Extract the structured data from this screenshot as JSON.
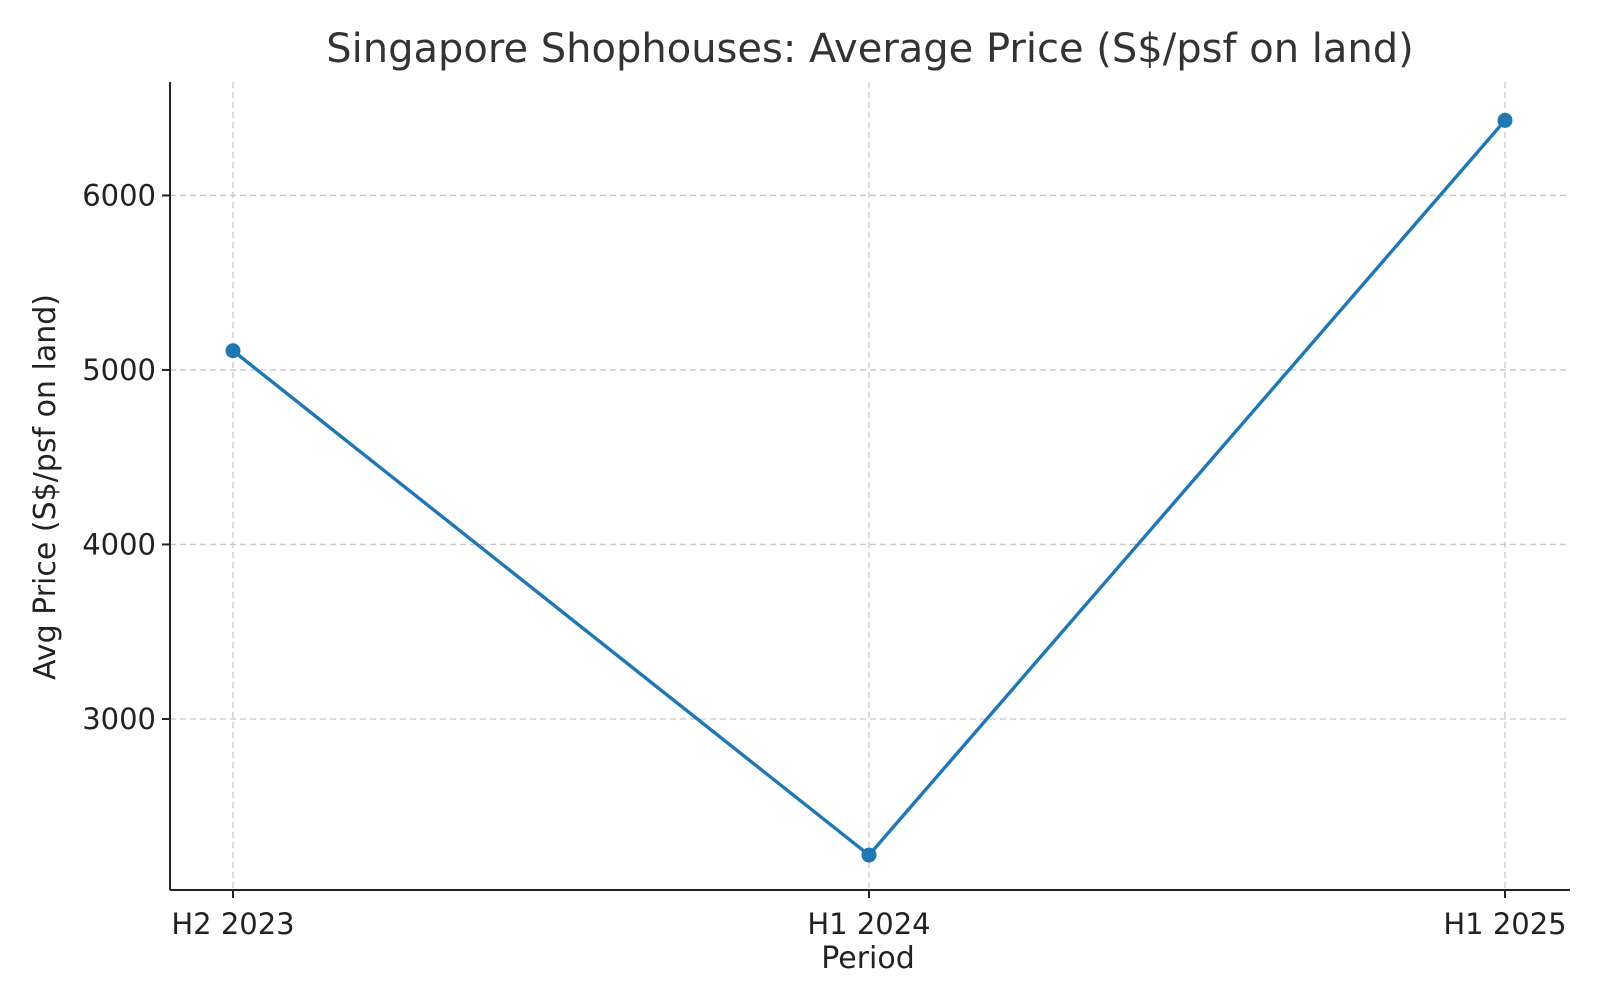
{
  "chart_data": {
    "type": "line",
    "title": "Singapore Shophouses: Average Price (S$/psf on land)",
    "xlabel": "Period",
    "ylabel": "Avg Price (S$/psf on land)",
    "categories": [
      "H2 2023",
      "H1 2024",
      "H1 2025"
    ],
    "series": [
      {
        "values": [
          5110,
          2220,
          6430
        ],
        "color": "#1f77b4",
        "marker": "circle"
      }
    ],
    "yticks": [
      3000,
      4000,
      5000,
      6000
    ],
    "ytick_labels": [
      "3000",
      "4000",
      "5000",
      "6000"
    ],
    "ylim": [
      2020,
      6650
    ],
    "grid": true,
    "grid_style": "dashed",
    "legend": "none"
  }
}
